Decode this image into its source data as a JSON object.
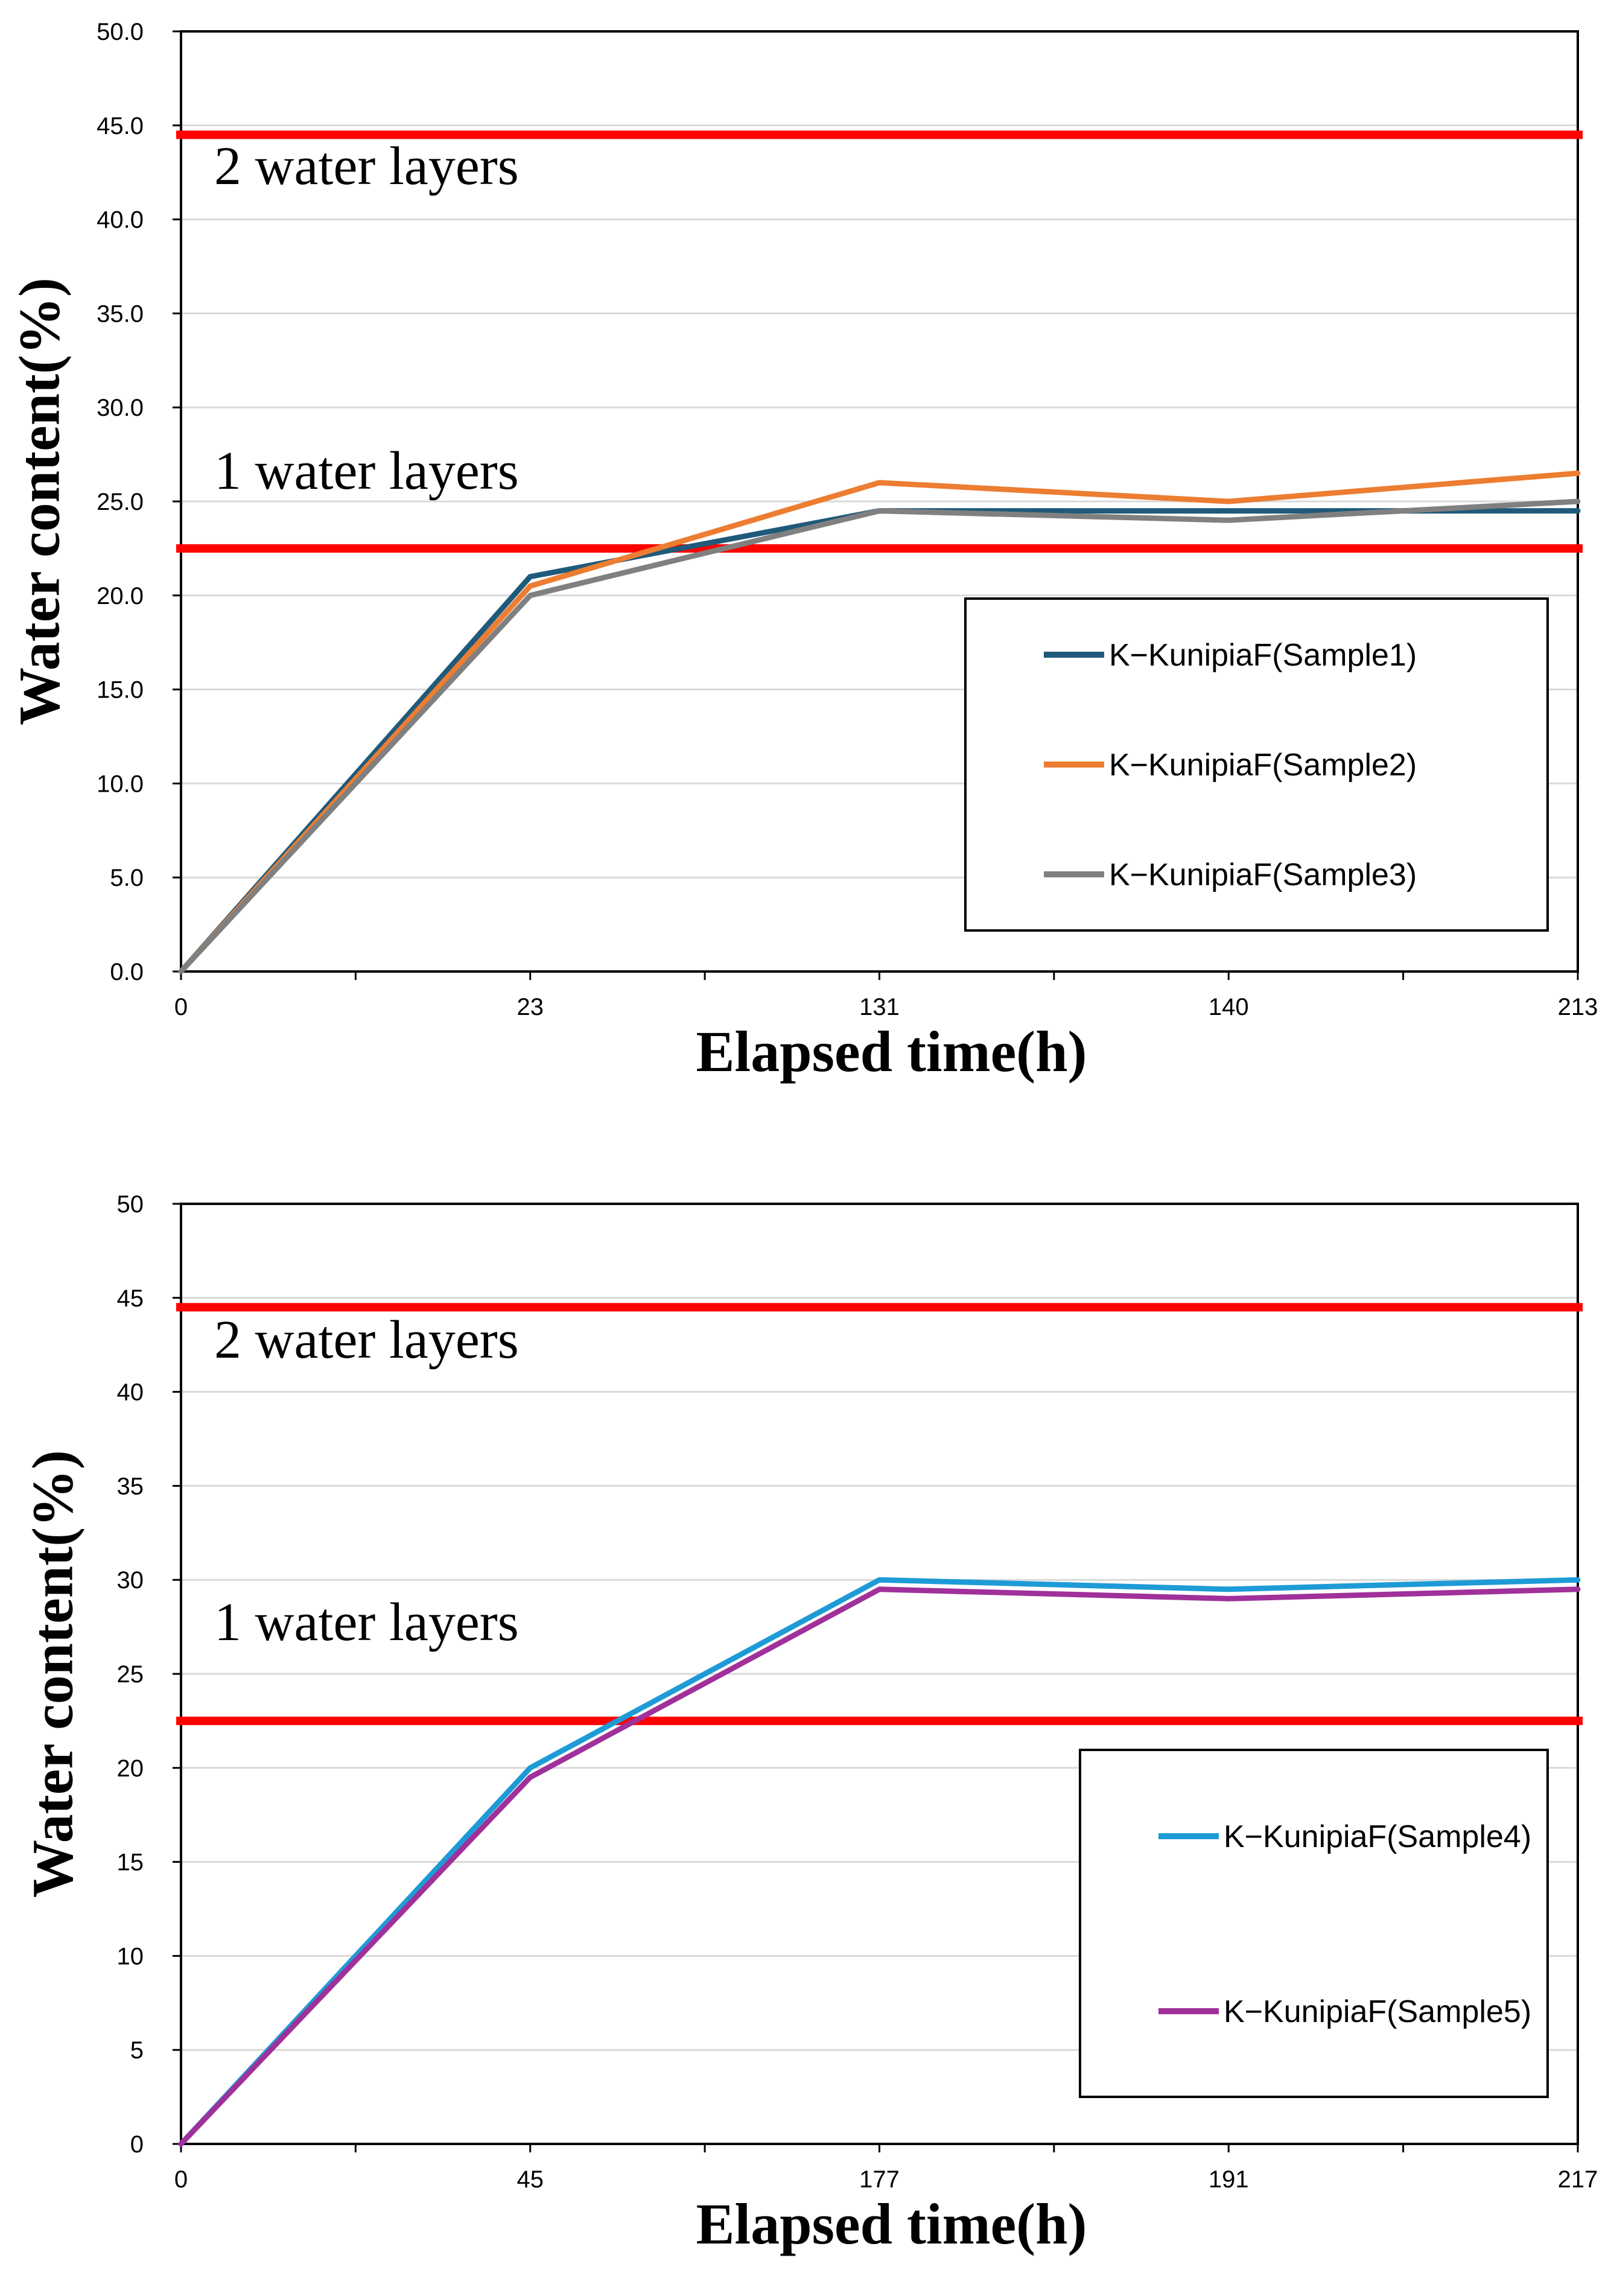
{
  "chart_data": [
    {
      "type": "line",
      "xlabel": "Elapsed time(h)",
      "ylabel": "Water content(%)",
      "categories": [
        "0",
        "23",
        "131",
        "140",
        "213"
      ],
      "ylim": [
        0,
        50
      ],
      "yticks": [
        "0.0",
        "5.0",
        "10.0",
        "15.0",
        "20.0",
        "25.0",
        "30.0",
        "35.0",
        "40.0",
        "45.0",
        "50.0"
      ],
      "grid": true,
      "legend_position": "bottom-right",
      "series": [
        {
          "name": "K−KunipiaF(Sample1)",
          "color": "#1f5a7a",
          "values": [
            0,
            21.0,
            24.5,
            24.5,
            24.5
          ]
        },
        {
          "name": "K−KunipiaF(Sample2)",
          "color": "#ed7d31",
          "values": [
            0,
            20.5,
            26.0,
            25.0,
            26.5
          ]
        },
        {
          "name": "K−KunipiaF(Sample3)",
          "color": "#808080",
          "values": [
            0,
            20.0,
            24.5,
            24.0,
            25.0
          ]
        }
      ],
      "reference_lines": [
        {
          "value": 44.5,
          "color": "#ff0000",
          "label": "2 water layers"
        },
        {
          "value": 22.5,
          "color": "#ff0000",
          "label": "1 water layers"
        }
      ]
    },
    {
      "type": "line",
      "xlabel": "Elapsed time(h)",
      "ylabel": "Water content(%)",
      "categories": [
        "0",
        "45",
        "177",
        "191",
        "217"
      ],
      "ylim": [
        0,
        50
      ],
      "yticks": [
        "0",
        "5",
        "10",
        "15",
        "20",
        "25",
        "30",
        "35",
        "40",
        "45",
        "50"
      ],
      "grid": true,
      "legend_position": "bottom-right",
      "series": [
        {
          "name": "K−KunipiaF(Sample4)",
          "color": "#1e9bd7",
          "values": [
            0,
            20.0,
            30.0,
            29.5,
            30.0
          ]
        },
        {
          "name": "K−KunipiaF(Sample5)",
          "color": "#a0309a",
          "values": [
            0,
            19.5,
            29.5,
            29.0,
            29.5
          ]
        }
      ],
      "reference_lines": [
        {
          "value": 44.5,
          "color": "#ff0000",
          "label": "2 water layers"
        },
        {
          "value": 22.5,
          "color": "#ff0000",
          "label": "1 water layers"
        }
      ]
    }
  ]
}
